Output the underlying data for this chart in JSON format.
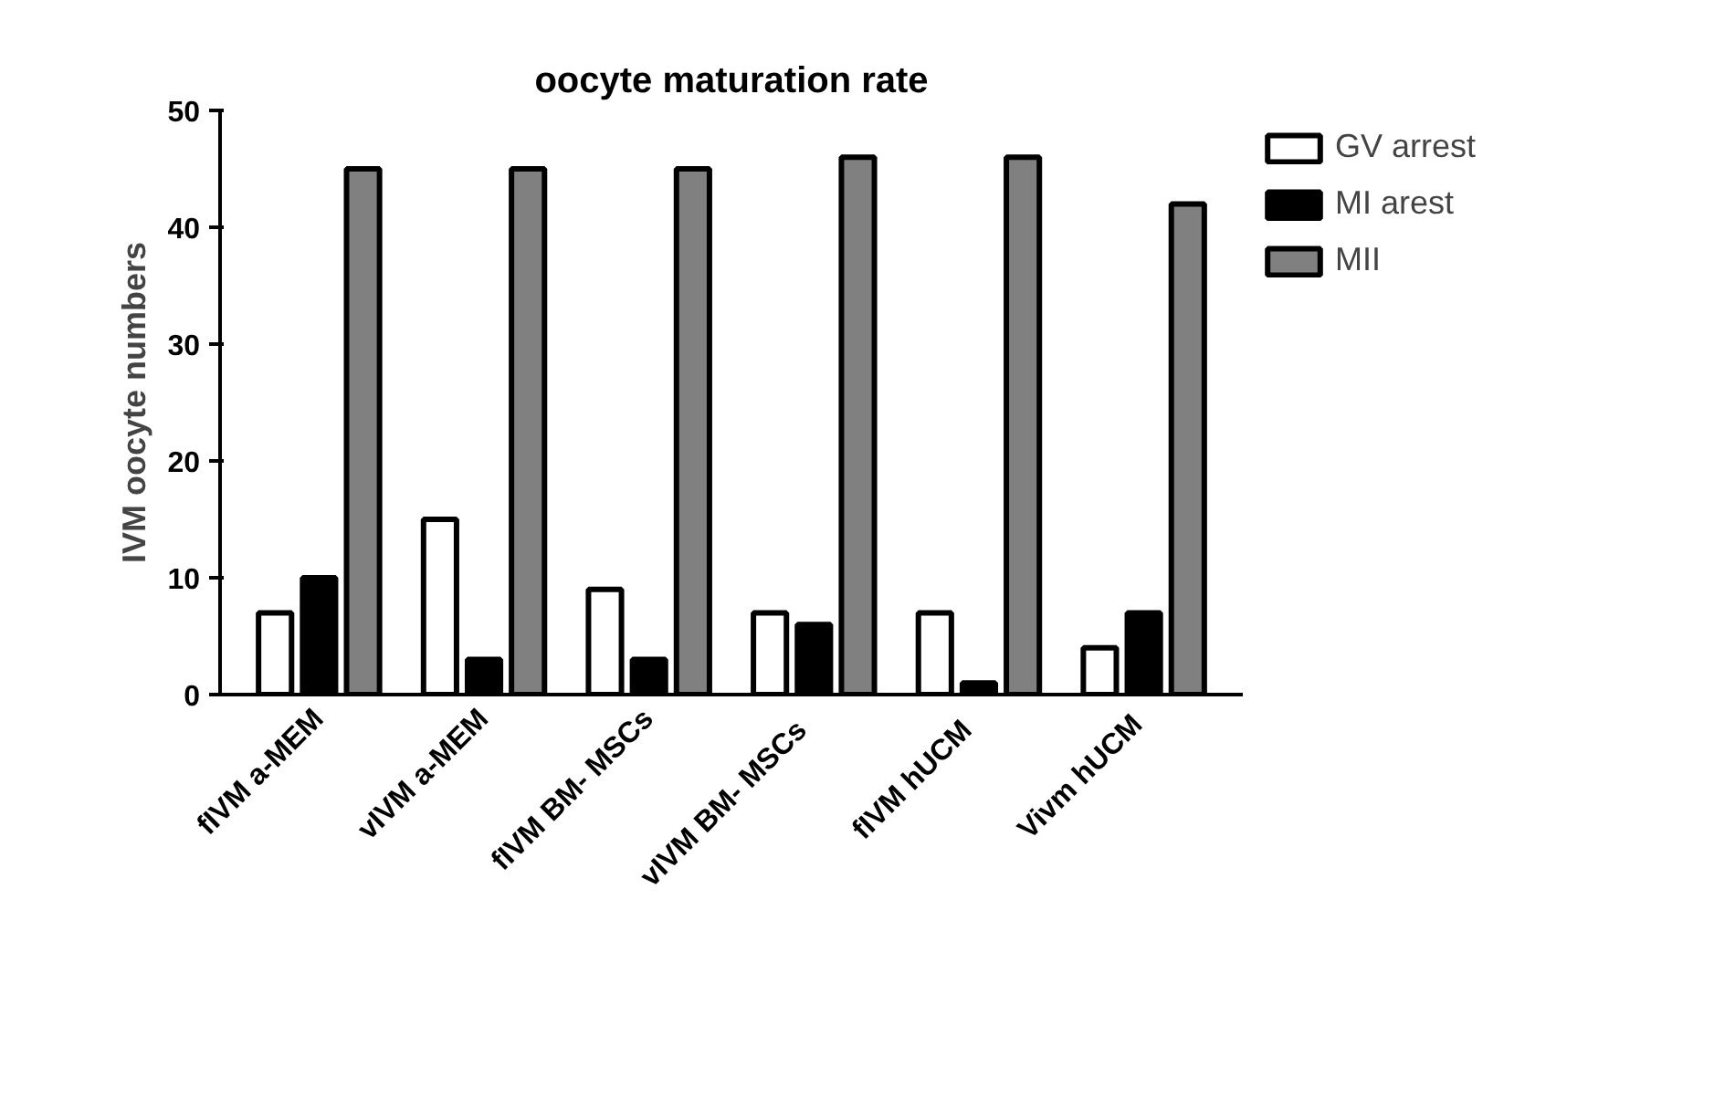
{
  "chart_data": {
    "type": "bar",
    "title": "oocyte maturation rate",
    "ylabel": "IVM oocyte numbers",
    "categories": [
      "fIVM a-MEM",
      "vIVM a-MEM",
      "fIVM BM- MSCs",
      "vIVM   BM- MSCs",
      "fIVM   hUCM",
      "Vivm  hUCM"
    ],
    "series": [
      {
        "name": "GV arrest",
        "color": "#ffffff",
        "values": [
          7,
          15,
          9,
          7,
          7,
          4
        ]
      },
      {
        "name": "MI arest",
        "color": "#000000",
        "values": [
          10,
          3,
          3,
          6,
          1,
          7
        ]
      },
      {
        "name": "MII",
        "color": "#808080",
        "values": [
          45,
          45,
          45,
          46,
          46,
          42
        ]
      }
    ],
    "ylim": [
      0,
      50
    ],
    "yticks": [
      0,
      10,
      20,
      30,
      40,
      50
    ],
    "grid": false,
    "legend": "top right"
  }
}
